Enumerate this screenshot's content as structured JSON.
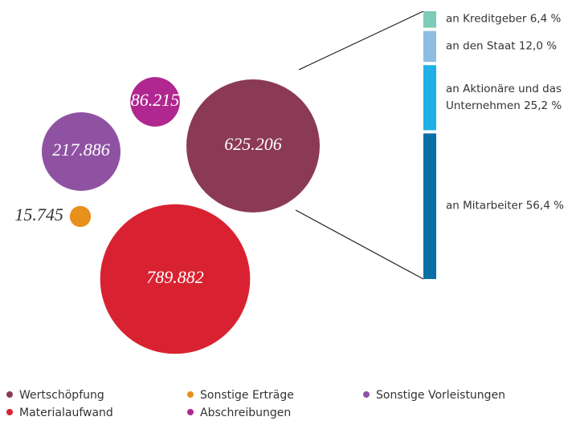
{
  "chart_data": [
    {
      "type": "bubble",
      "categories": [
        "Wertschöpfung",
        "Materialaufwand",
        "Sonstige Vorleistungen",
        "Abschreibungen",
        "Sonstige Erträge"
      ],
      "values": [
        625.206,
        789.882,
        217.886,
        86.215,
        15.745
      ],
      "colors": [
        "#8b3a55",
        "#d92231",
        "#8f52a3",
        "#b0278f",
        "#e8901c"
      ]
    },
    {
      "type": "stacked-bar",
      "categories": [
        "an Kreditgeber",
        "an den Staat",
        "an Aktionäre und das Unternehmen",
        "an Mitarbeiter"
      ],
      "values": [
        6.4,
        12.0,
        25.2,
        56.4
      ],
      "value_labels": [
        "6,4 %",
        "12,0 %",
        "25,2 %",
        "56,4 %"
      ],
      "colors": [
        "#7ecbb9",
        "#8dbde0",
        "#1fb0e6",
        "#0a6fa5"
      ]
    }
  ]
}
